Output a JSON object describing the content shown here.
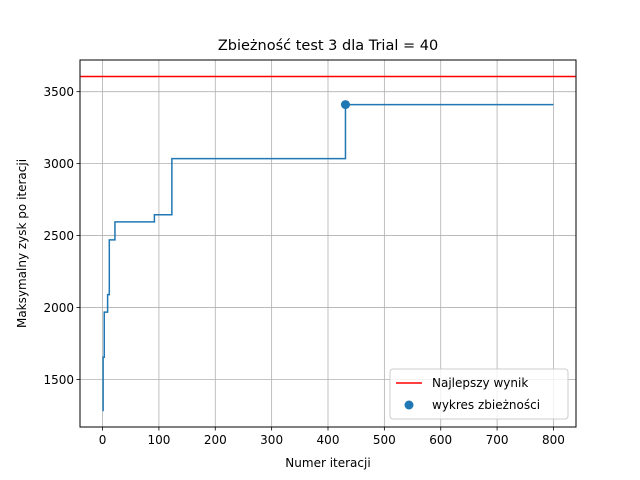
{
  "chart_data": {
    "type": "line",
    "title": "Zbieżność test 3 dla Trial = 40",
    "xlabel": "Numer iteracji",
    "ylabel": "Maksymalny zysk po iteracji",
    "xlim": [
      -40,
      840
    ],
    "ylim": [
      1170,
      3720
    ],
    "xticks": [
      0,
      100,
      200,
      300,
      400,
      500,
      600,
      700,
      800
    ],
    "yticks": [
      1500,
      2000,
      2500,
      3000,
      3500
    ],
    "grid": true,
    "legend_position": "lower-right",
    "best_line": {
      "label": "Najlepszy wynik",
      "y": 3605,
      "color": "#ff0000"
    },
    "series": [
      {
        "label": "",
        "color": "#1f77b4",
        "x": [
          0,
          1,
          1,
          3,
          3,
          9,
          9,
          12,
          12,
          22,
          22,
          92,
          92,
          123,
          123,
          431,
          431,
          800
        ],
        "y": [
          1285,
          1285,
          1655,
          1655,
          1968,
          1968,
          2090,
          2090,
          2470,
          2470,
          2595,
          2595,
          2645,
          2645,
          3035,
          3035,
          3410,
          3410
        ]
      }
    ],
    "point": {
      "label": "wykres zbieżności",
      "x": 431,
      "y": 3410,
      "color": "#1f77b4"
    }
  }
}
